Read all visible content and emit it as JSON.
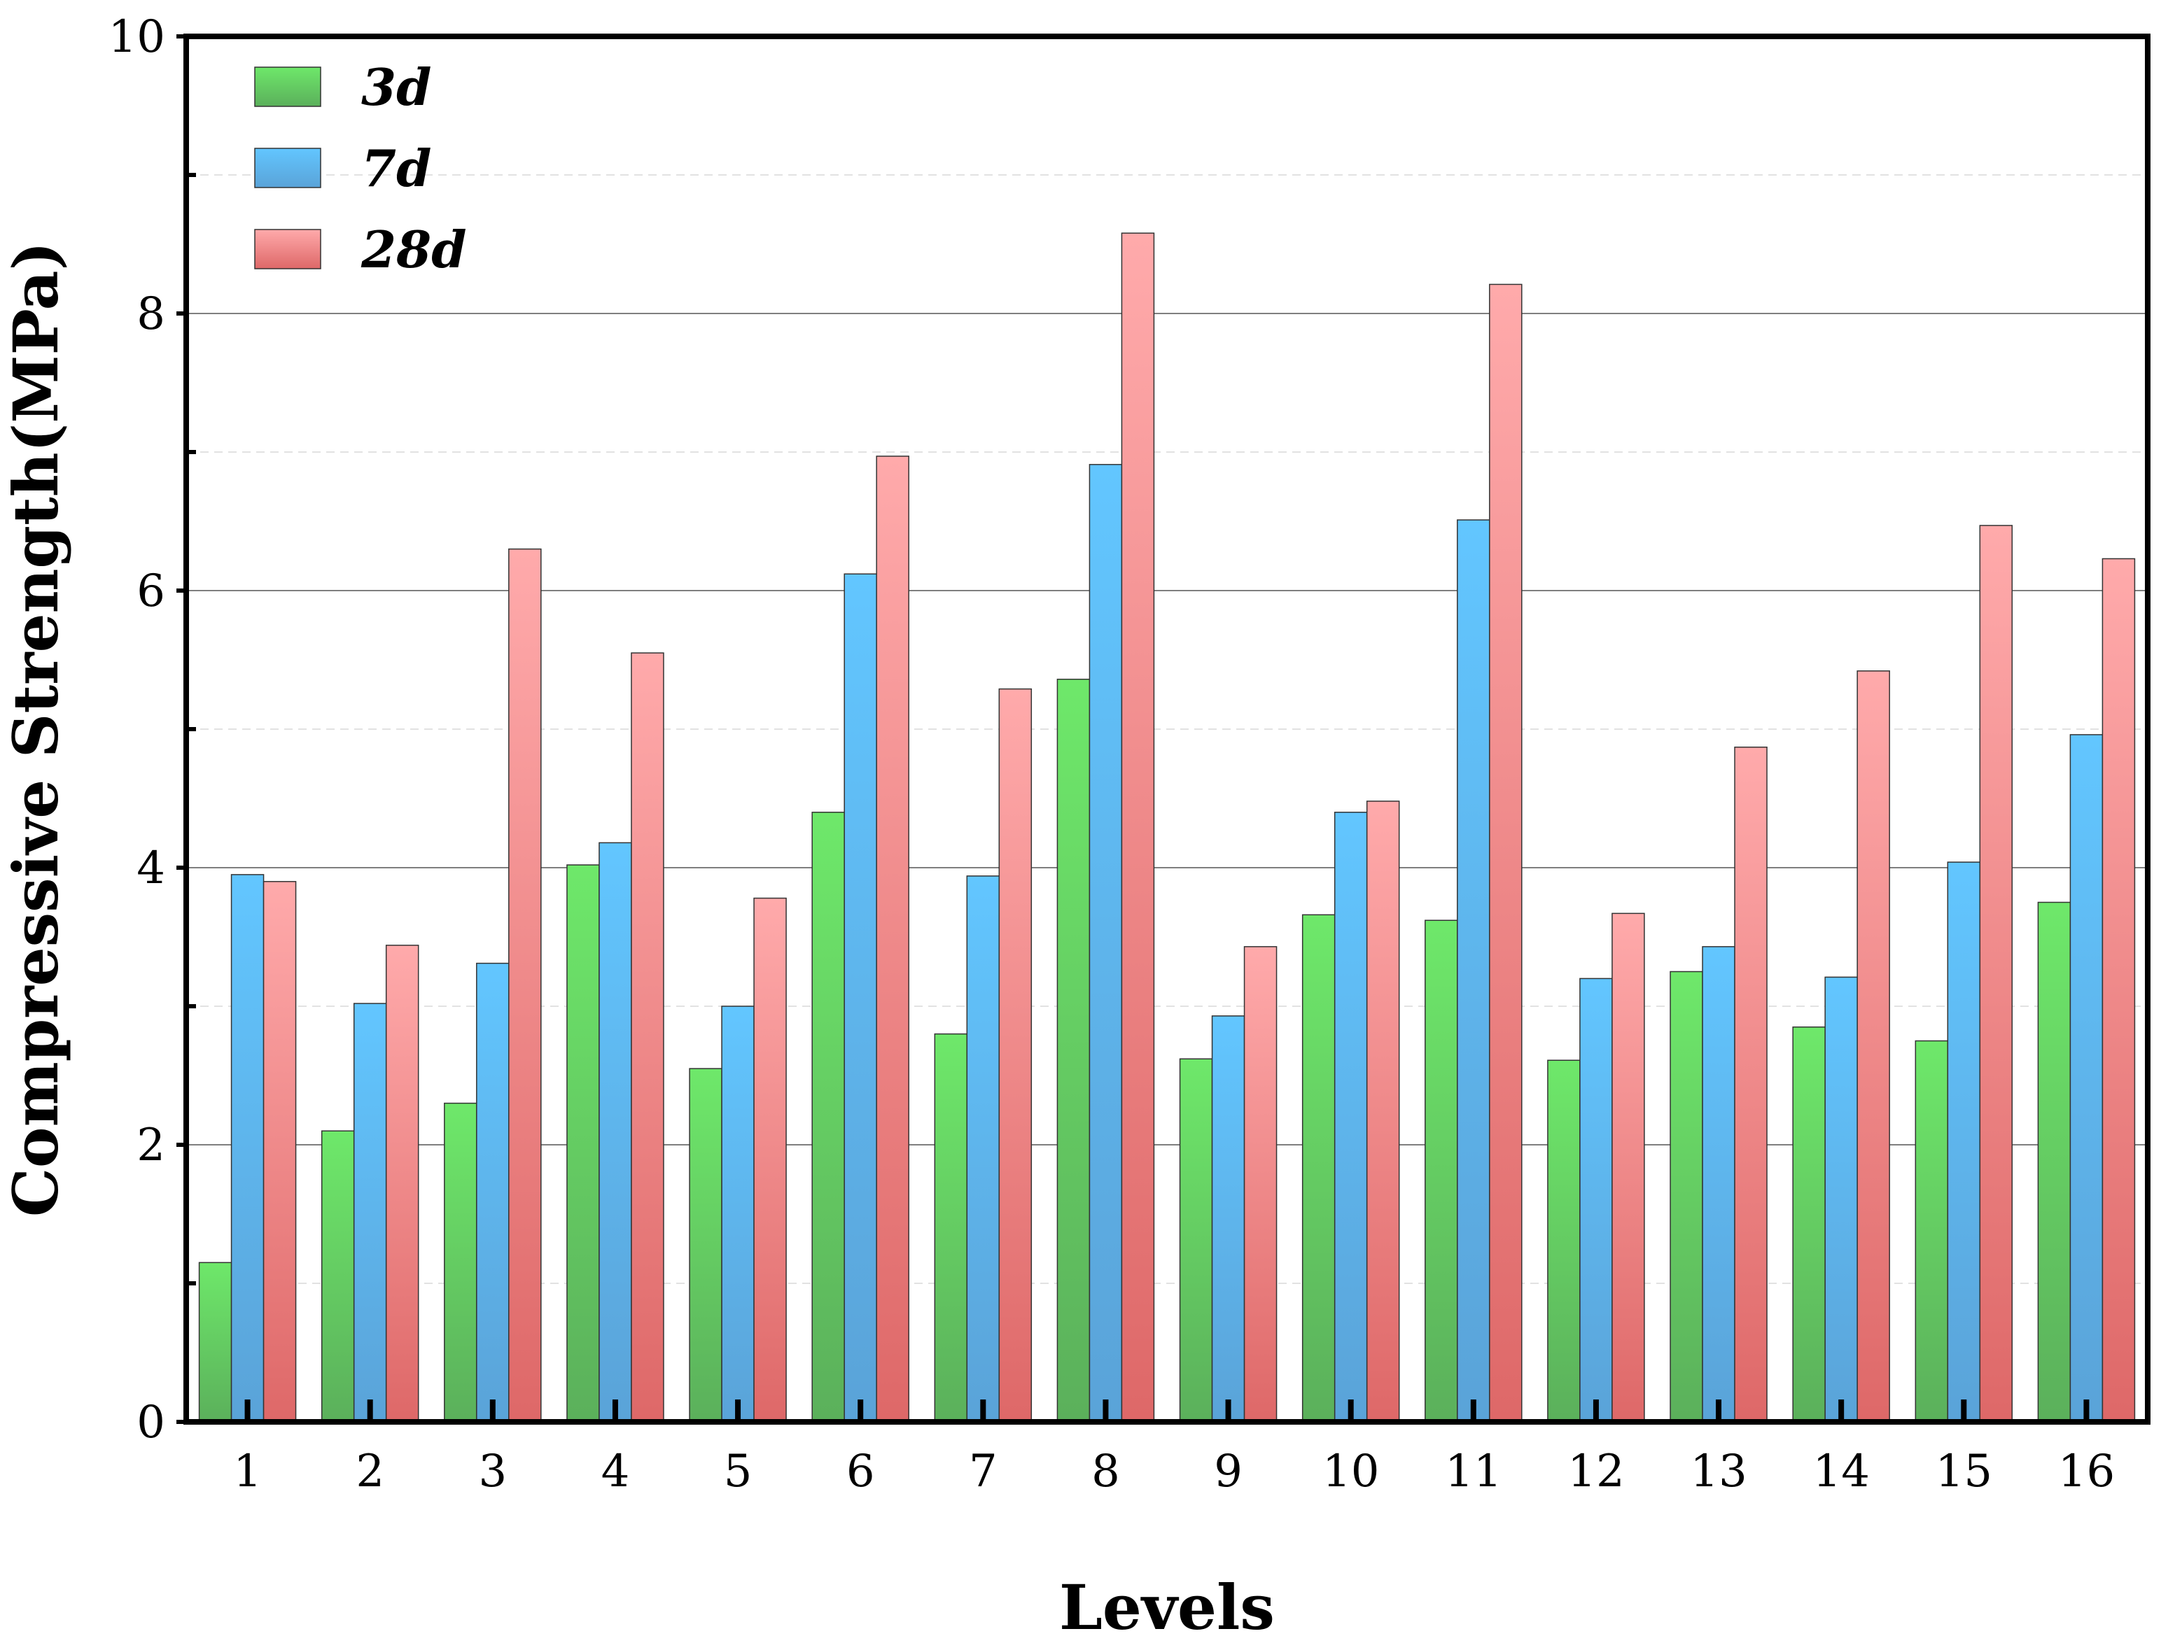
{
  "chart_data": {
    "type": "bar",
    "title": "",
    "xlabel": "Levels",
    "ylabel": "Compressive Strength(MPa)",
    "ylim": [
      0,
      10
    ],
    "yticks": [
      0,
      2,
      4,
      6,
      8,
      10
    ],
    "grid": true,
    "legend_position": "top-left",
    "categories": [
      "1",
      "2",
      "3",
      "4",
      "5",
      "6",
      "7",
      "8",
      "9",
      "10",
      "11",
      "12",
      "13",
      "14",
      "15",
      "16"
    ],
    "series": [
      {
        "name": "3d",
        "color": "#5ec95e",
        "values": [
          1.15,
          2.1,
          2.3,
          4.02,
          2.55,
          4.4,
          2.8,
          5.36,
          2.62,
          3.66,
          3.62,
          2.61,
          3.25,
          2.85,
          2.75,
          3.75
        ]
      },
      {
        "name": "7d",
        "color": "#5bb8f0",
        "values": [
          3.95,
          3.02,
          3.31,
          4.18,
          3.0,
          6.12,
          3.94,
          6.91,
          2.93,
          4.4,
          6.51,
          3.2,
          3.43,
          3.21,
          4.04,
          4.96
        ]
      },
      {
        "name": "28d",
        "color": "#f29a9c",
        "values": [
          3.9,
          3.44,
          6.3,
          5.55,
          3.78,
          6.97,
          5.29,
          8.58,
          3.43,
          4.48,
          8.21,
          3.67,
          4.87,
          5.42,
          6.47,
          6.23
        ]
      }
    ]
  }
}
